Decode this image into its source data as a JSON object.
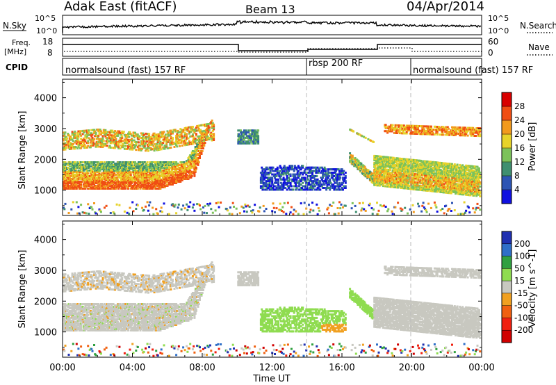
{
  "header": {
    "station": "Adak East (fitACF)",
    "beam": "Beam 13",
    "date": "04/Apr/2014"
  },
  "top_panels": {
    "nsky_label": "N.Sky",
    "nsearch_label": "N.Search",
    "nsky_ticks": [
      "10^5",
      "10^0"
    ],
    "nsearch_ticks": [
      "10^5",
      "10^0"
    ],
    "freq_label": "Freq.",
    "freq_unit": "[MHz]",
    "freq_ticks": [
      "18",
      "8"
    ],
    "nave_label": "Nave",
    "nave_ticks": [
      "60",
      "0"
    ],
    "cpid_label": "CPID",
    "cpid_segments": [
      {
        "label": "normalsound (fast) 157 RF",
        "start_h": 0,
        "end_h": 14
      },
      {
        "label": "rbsp 200 RF",
        "start_h": 14,
        "end_h": 20
      },
      {
        "label": "normalsound (fast) 157 RF",
        "start_h": 20,
        "end_h": 24
      }
    ]
  },
  "chart_data": [
    {
      "type": "heatmap",
      "panel": "power",
      "xlabel": "Time UT",
      "ylabel": "Slant Range [km]",
      "x_ticks": [
        "00:00",
        "04:00",
        "08:00",
        "12:00",
        "16:00",
        "20:00",
        "00:00"
      ],
      "xlim_hours": [
        0,
        24
      ],
      "yticks": [
        1000,
        2000,
        3000,
        4000
      ],
      "ylim": [
        180,
        4600
      ],
      "colorbar_label": "Power [dB]",
      "colorbar_ticks": [
        "4",
        "8",
        "12",
        "16",
        "20",
        "24",
        "28"
      ],
      "colorbar_colors": [
        "#1010e0",
        "#2d54b4",
        "#3f8f70",
        "#7cc25a",
        "#e7d32a",
        "#f29a1d",
        "#f04e14",
        "#d80000"
      ],
      "series": [
        {
          "region_h": [
            0,
            8.6
          ],
          "range_km": [
            1000,
            3400
          ],
          "level_db": [
            4,
            30
          ]
        },
        {
          "region_h": [
            10,
            11
          ],
          "range_km": [
            2500,
            3000
          ],
          "level_db": [
            4,
            16
          ]
        },
        {
          "region_h": [
            11.3,
            16.2
          ],
          "range_km": [
            1100,
            1900
          ],
          "level_db": [
            4,
            14
          ]
        },
        {
          "region_h": [
            16.4,
            24
          ],
          "range_km": [
            1000,
            3400
          ],
          "level_db": [
            4,
            30
          ]
        }
      ]
    },
    {
      "type": "heatmap",
      "panel": "velocity",
      "xlabel": "Time UT",
      "ylabel": "Slant Range [km]",
      "x_ticks": [
        "00:00",
        "04:00",
        "08:00",
        "12:00",
        "16:00",
        "20:00",
        "00:00"
      ],
      "xlim_hours": [
        0,
        24
      ],
      "yticks": [
        1000,
        2000,
        3000,
        4000
      ],
      "ylim": [
        180,
        4600
      ],
      "colorbar_label": "Velocity [m s^-1]",
      "colorbar_ticks": [
        "200",
        "100",
        "50",
        "15",
        "-15",
        "-50",
        "-100",
        "-200"
      ],
      "colorbar_colors": [
        "#2030b0",
        "#2f6fc8",
        "#30a040",
        "#8fdc50",
        "#c8c8c0",
        "#f0a020",
        "#f06010",
        "#f02010",
        "#d00000"
      ],
      "series": [
        {
          "region_h": [
            0,
            8.6
          ],
          "range_km": [
            1000,
            3400
          ],
          "velocity_ms": [
            -15,
            15
          ]
        },
        {
          "region_h": [
            11.3,
            16.2
          ],
          "range_km": [
            900,
            1900
          ],
          "velocity_ms": [
            15,
            100
          ]
        },
        {
          "region_h": [
            15.8,
            17.8
          ],
          "range_km": [
            1300,
            3000
          ],
          "velocity_ms": [
            15,
            100
          ]
        },
        {
          "region_h": [
            17.8,
            24
          ],
          "range_km": [
            1100,
            3400
          ],
          "velocity_ms": [
            -15,
            15
          ]
        }
      ]
    }
  ]
}
